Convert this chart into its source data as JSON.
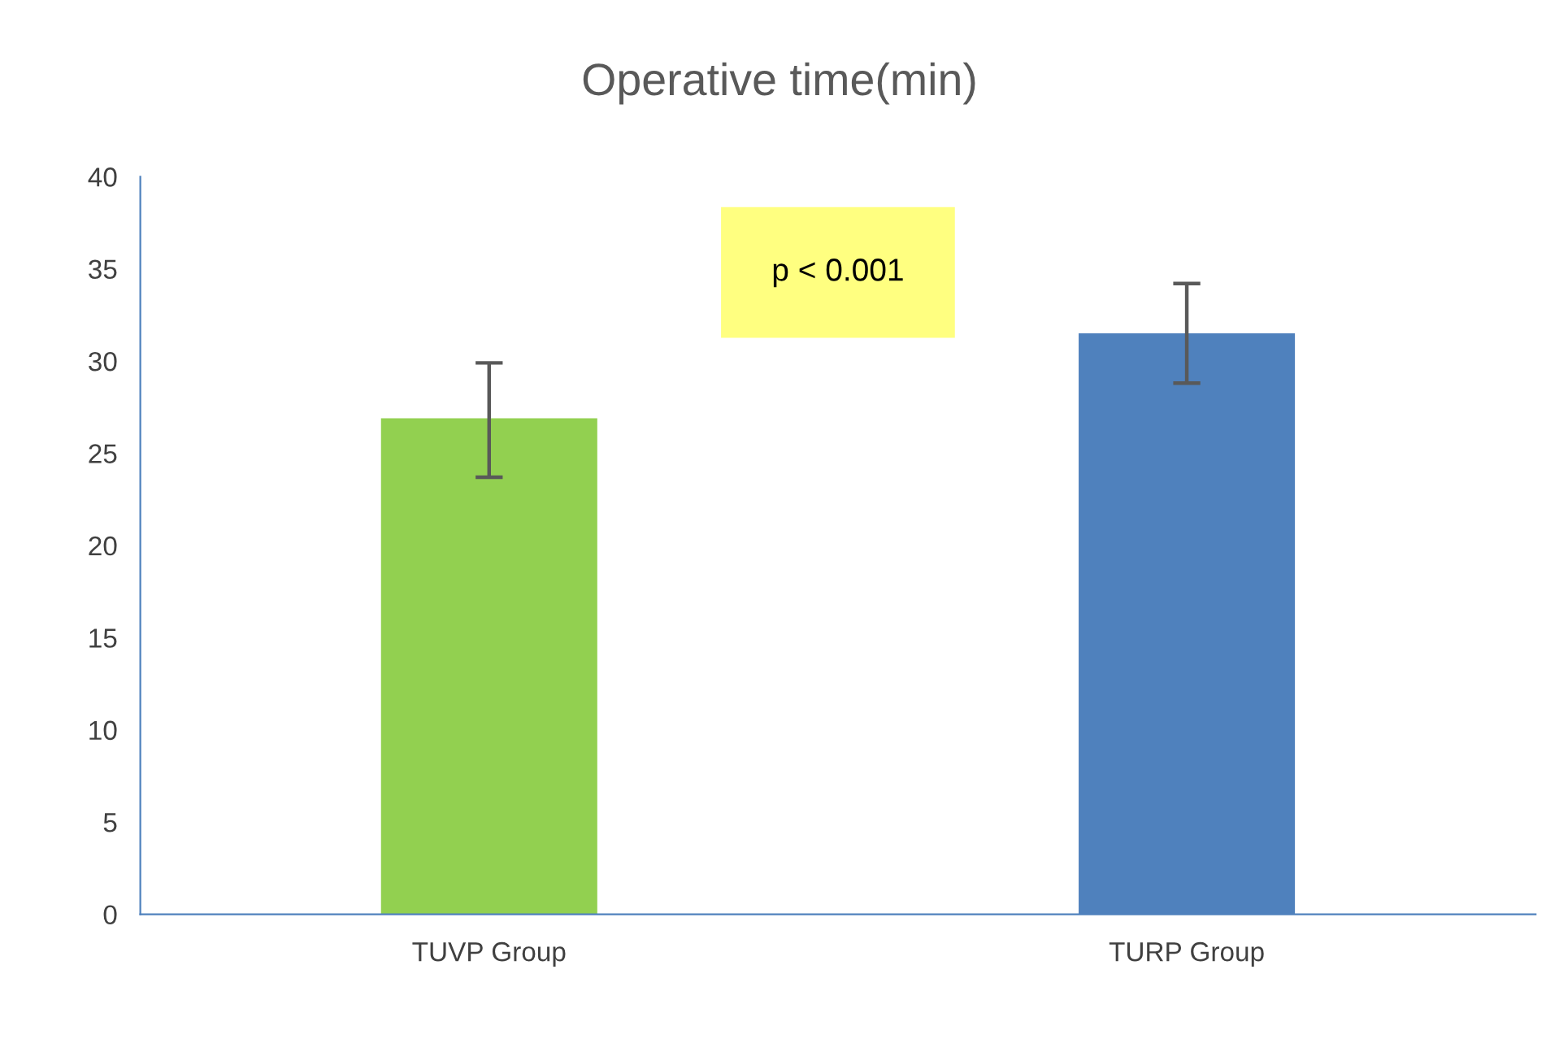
{
  "chart_data": {
    "type": "bar",
    "title": "Operative time(min)",
    "categories": [
      "TUVP Group",
      "TURP Group"
    ],
    "values": [
      26.9,
      31.5
    ],
    "colors": [
      "#92d050",
      "#4f81bd"
    ],
    "errors": [
      [
        23.7,
        29.9
      ],
      [
        28.8,
        34.2
      ]
    ],
    "ylim": [
      0,
      40
    ],
    "yticks": [
      0,
      5,
      10,
      15,
      20,
      25,
      30,
      35,
      40
    ],
    "grid": false,
    "annotations": [
      "p < 0.001"
    ]
  }
}
